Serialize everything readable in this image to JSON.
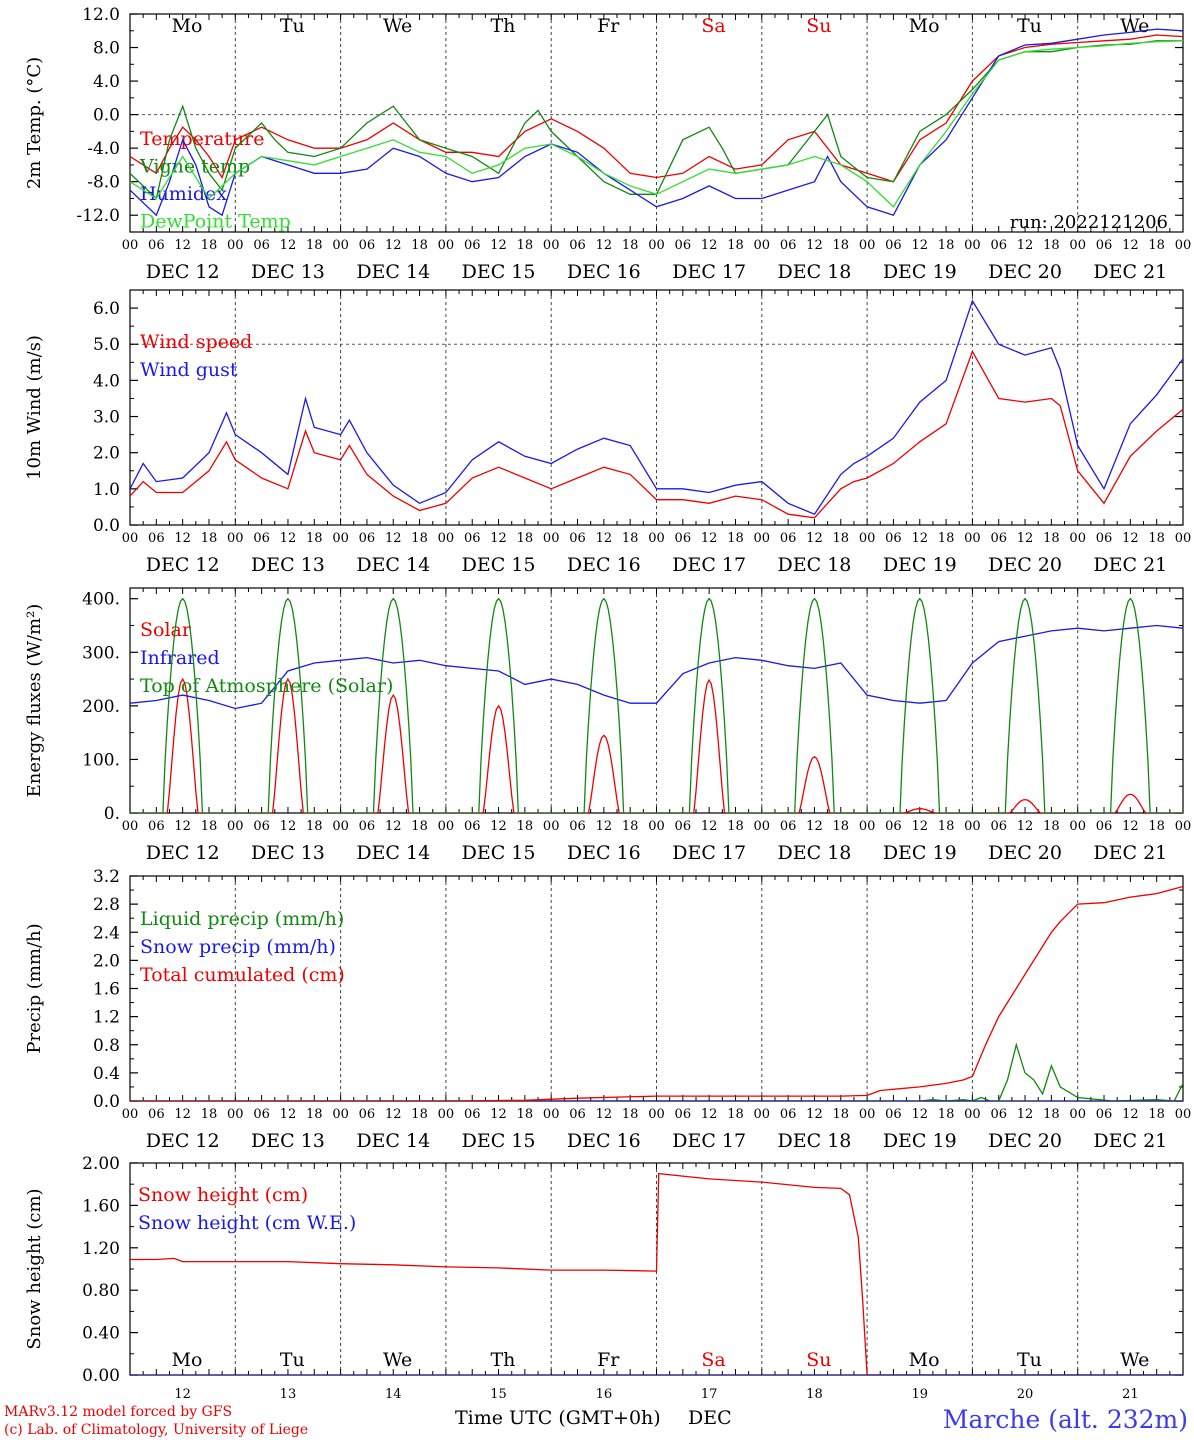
{
  "run_label": "run: 2022121206",
  "footer": {
    "credit_line1": "MARv3.12 model forced by GFS",
    "credit_line2": "(c) Lab. of Climatology, University of Liege",
    "xaxis_title": "Time UTC (GMT+0h)",
    "month": "DEC",
    "station": "Marche (alt. 232m)"
  },
  "days": [
    {
      "dow": "Mo",
      "label": "DEC 12",
      "num": "12",
      "weekend": false
    },
    {
      "dow": "Tu",
      "label": "DEC 13",
      "num": "13",
      "weekend": false
    },
    {
      "dow": "We",
      "label": "DEC 14",
      "num": "14",
      "weekend": false
    },
    {
      "dow": "Th",
      "label": "DEC 15",
      "num": "15",
      "weekend": false
    },
    {
      "dow": "Fr",
      "label": "DEC 16",
      "num": "16",
      "weekend": false
    },
    {
      "dow": "Sa",
      "label": "DEC 17",
      "num": "17",
      "weekend": true
    },
    {
      "dow": "Su",
      "label": "DEC 18",
      "num": "18",
      "weekend": true
    },
    {
      "dow": "Mo",
      "label": "DEC 19",
      "num": "19",
      "weekend": false
    },
    {
      "dow": "Tu",
      "label": "DEC 20",
      "num": "20",
      "weekend": false
    },
    {
      "dow": "We",
      "label": "DEC 21",
      "num": "21",
      "weekend": false
    }
  ],
  "hour_ticks": [
    "00",
    "06",
    "12",
    "18"
  ],
  "colors": {
    "red": "#ee0000",
    "green": "#118811",
    "blue": "#1a1ae6",
    "lightgreen": "#33dd33"
  },
  "chart_data": [
    {
      "id": "temp",
      "type": "line",
      "ylabel": "2m Temp. (°C)",
      "x_unit": "hours since DEC 12 00 UTC",
      "ylim": [
        -14,
        12
      ],
      "yticks": [
        12,
        8,
        4,
        0,
        -4,
        -8,
        -12
      ],
      "ytick_labels": [
        "12.0",
        "8.0",
        "4.0",
        "0.0",
        "-4.0",
        "-8.0",
        "-12.0"
      ],
      "ref_lines": [
        0
      ],
      "show_dow": true,
      "series": [
        {
          "name": "Temperature",
          "color": "red",
          "x": [
            0,
            6,
            9,
            12,
            15,
            18,
            21,
            24,
            30,
            36,
            42,
            48,
            54,
            60,
            66,
            72,
            78,
            84,
            90,
            96,
            102,
            108,
            114,
            120,
            126,
            132,
            138,
            144,
            150,
            156,
            162,
            168,
            174,
            180,
            186,
            192,
            198,
            204,
            210,
            216,
            222,
            228,
            234,
            240
          ],
          "y": [
            -5,
            -7,
            -4,
            -1.5,
            -3,
            -5,
            -7.5,
            -3,
            -1.5,
            -3,
            -4,
            -4,
            -3,
            -1,
            -3,
            -4.5,
            -4.5,
            -5,
            -2,
            -0.5,
            -2,
            -4,
            -7,
            -7.5,
            -7,
            -5,
            -6.5,
            -6,
            -3,
            -2,
            -6,
            -7,
            -8,
            -3,
            -1,
            4,
            7,
            8,
            8.4,
            8.6,
            8.8,
            9,
            9.5,
            9.3
          ]
        },
        {
          "name": "Vigne temp",
          "color": "green",
          "x": [
            0,
            6,
            9,
            12,
            15,
            18,
            21,
            24,
            30,
            33,
            36,
            42,
            48,
            54,
            60,
            63,
            66,
            72,
            78,
            84,
            90,
            93,
            96,
            102,
            108,
            114,
            120,
            126,
            132,
            135,
            138,
            144,
            150,
            156,
            159,
            162,
            168,
            174,
            180,
            186,
            192,
            198,
            204,
            210,
            216,
            222,
            228,
            234,
            240
          ],
          "y": [
            -7,
            -10,
            -3,
            1,
            -4,
            -7,
            -9,
            -4,
            -1,
            -3,
            -4.5,
            -5,
            -4,
            -1,
            1,
            -1,
            -3,
            -4,
            -5,
            -7,
            -1,
            0.5,
            -2,
            -5,
            -8,
            -9.5,
            -9.5,
            -3,
            -1.5,
            -4,
            -7,
            -6.5,
            -6,
            -2,
            0,
            -5,
            -7.5,
            -8,
            -2,
            0,
            3,
            6.5,
            7.5,
            7.5,
            8,
            8.3,
            8.4,
            8.8,
            8.8
          ]
        },
        {
          "name": "Humidex",
          "color": "blue",
          "x": [
            0,
            6,
            9,
            12,
            15,
            18,
            21,
            24,
            30,
            36,
            42,
            48,
            54,
            60,
            66,
            72,
            78,
            84,
            90,
            96,
            102,
            108,
            114,
            120,
            126,
            132,
            138,
            144,
            150,
            156,
            159,
            162,
            168,
            174,
            180,
            186,
            192,
            198,
            204,
            210,
            216,
            222,
            228,
            234,
            240
          ],
          "y": [
            -9,
            -12,
            -8,
            -3,
            -6,
            -11,
            -12,
            -7,
            -5,
            -6,
            -7,
            -7,
            -6.5,
            -4,
            -5,
            -7,
            -8,
            -7.5,
            -5,
            -3.5,
            -4.5,
            -7,
            -9,
            -11,
            -10,
            -8.5,
            -10,
            -10,
            -9,
            -8,
            -5,
            -8,
            -11,
            -12,
            -6,
            -3,
            2,
            7,
            8.3,
            8.5,
            9,
            9.5,
            9.8,
            10.2,
            10
          ]
        },
        {
          "name": "DewPoint Temp",
          "color": "lightgreen",
          "x": [
            0,
            6,
            12,
            18,
            24,
            30,
            36,
            42,
            48,
            54,
            60,
            66,
            72,
            78,
            84,
            90,
            96,
            102,
            108,
            114,
            120,
            126,
            132,
            138,
            144,
            150,
            156,
            162,
            168,
            174,
            180,
            186,
            192,
            198,
            204,
            210,
            216,
            222,
            228,
            234,
            240
          ],
          "y": [
            -8,
            -10,
            -5,
            -10,
            -7,
            -5,
            -5.5,
            -6,
            -5,
            -4,
            -3,
            -4.5,
            -5,
            -7,
            -6,
            -4,
            -3.5,
            -5,
            -7,
            -8.5,
            -9.5,
            -8,
            -6.5,
            -7,
            -6.5,
            -6,
            -5,
            -6,
            -8,
            -11,
            -6,
            -2,
            2.5,
            6.5,
            7.5,
            7.8,
            8,
            8.2,
            8.5,
            8.7,
            8.8
          ]
        }
      ]
    },
    {
      "id": "wind",
      "type": "line",
      "ylabel": "10m Wind (m/s)",
      "x_unit": "hours since DEC 12 00 UTC",
      "ylim": [
        0,
        6.5
      ],
      "yticks": [
        0,
        1,
        2,
        3,
        4,
        5,
        6
      ],
      "ytick_labels": [
        "0.0",
        "1.0",
        "2.0",
        "3.0",
        "4.0",
        "5.0",
        "6.0"
      ],
      "ref_lines": [
        5
      ],
      "show_dow": false,
      "series": [
        {
          "name": "Wind speed",
          "color": "red",
          "x": [
            0,
            3,
            6,
            12,
            18,
            22,
            24,
            30,
            36,
            40,
            42,
            48,
            50,
            54,
            60,
            66,
            72,
            78,
            84,
            90,
            96,
            102,
            108,
            114,
            120,
            126,
            132,
            138,
            144,
            150,
            156,
            162,
            165,
            168,
            174,
            180,
            186,
            192,
            198,
            204,
            210,
            212,
            216,
            222,
            228,
            234,
            240
          ],
          "y": [
            0.8,
            1.2,
            0.9,
            0.9,
            1.5,
            2.3,
            1.8,
            1.3,
            1.0,
            2.6,
            2.0,
            1.8,
            2.2,
            1.4,
            0.8,
            0.4,
            0.6,
            1.3,
            1.6,
            1.3,
            1.0,
            1.3,
            1.6,
            1.4,
            0.7,
            0.7,
            0.6,
            0.8,
            0.7,
            0.3,
            0.2,
            1.0,
            1.2,
            1.3,
            1.7,
            2.3,
            2.8,
            4.8,
            3.5,
            3.4,
            3.5,
            3.3,
            1.5,
            0.6,
            1.9,
            2.6,
            3.2
          ]
        },
        {
          "name": "Wind gust",
          "color": "blue",
          "x": [
            0,
            3,
            6,
            12,
            18,
            22,
            24,
            30,
            36,
            40,
            42,
            48,
            50,
            54,
            60,
            66,
            72,
            78,
            84,
            90,
            96,
            102,
            108,
            114,
            120,
            126,
            132,
            138,
            144,
            150,
            156,
            162,
            165,
            168,
            174,
            180,
            186,
            192,
            198,
            204,
            210,
            212,
            216,
            222,
            228,
            234,
            240
          ],
          "y": [
            1.0,
            1.7,
            1.2,
            1.3,
            2.0,
            3.1,
            2.5,
            2.0,
            1.4,
            3.5,
            2.7,
            2.5,
            2.9,
            2.0,
            1.1,
            0.6,
            0.9,
            1.8,
            2.3,
            1.9,
            1.7,
            2.1,
            2.4,
            2.2,
            1.0,
            1.0,
            0.9,
            1.1,
            1.2,
            0.6,
            0.3,
            1.4,
            1.7,
            1.9,
            2.4,
            3.4,
            4.0,
            6.2,
            5.0,
            4.7,
            4.9,
            4.3,
            2.2,
            1.0,
            2.8,
            3.6,
            4.6
          ]
        }
      ]
    },
    {
      "id": "energy",
      "type": "line",
      "ylabel": "Energy fluxes (W/m²)",
      "x_unit": "hours since DEC 12 00 UTC",
      "ylim": [
        0,
        420
      ],
      "yticks": [
        0,
        100,
        200,
        300,
        400
      ],
      "ytick_labels": [
        "0.",
        "100.",
        "200.",
        "300.",
        "400."
      ],
      "ref_lines": [],
      "show_dow": false,
      "toa_peak": 400,
      "solar_peaks": [
        250,
        250,
        220,
        200,
        145,
        248,
        105,
        8,
        25,
        35
      ],
      "series": [
        {
          "name": "Solar",
          "color": "red"
        },
        {
          "name": "Infrared",
          "color": "blue",
          "x": [
            0,
            6,
            12,
            18,
            24,
            30,
            36,
            42,
            48,
            54,
            60,
            66,
            72,
            78,
            84,
            90,
            96,
            102,
            108,
            114,
            120,
            126,
            132,
            138,
            144,
            150,
            156,
            162,
            168,
            174,
            180,
            186,
            192,
            198,
            204,
            210,
            216,
            222,
            228,
            234,
            240
          ],
          "y": [
            205,
            210,
            220,
            210,
            195,
            205,
            265,
            280,
            285,
            290,
            280,
            285,
            275,
            270,
            265,
            240,
            250,
            240,
            220,
            205,
            205,
            260,
            280,
            290,
            285,
            275,
            270,
            280,
            220,
            210,
            205,
            210,
            280,
            320,
            330,
            340,
            345,
            340,
            345,
            350,
            345
          ]
        },
        {
          "name": "Top of Atmosphere (Solar)",
          "color": "green"
        }
      ]
    },
    {
      "id": "precip",
      "type": "line",
      "ylabel": "Precip (mm/h)",
      "x_unit": "hours since DEC 12 00 UTC",
      "ylim": [
        0,
        3.2
      ],
      "yticks": [
        0,
        0.4,
        0.8,
        1.2,
        1.6,
        2.0,
        2.4,
        2.8,
        3.2
      ],
      "ytick_labels": [
        "0.0",
        "0.4",
        "0.8",
        "1.2",
        "1.6",
        "2.0",
        "2.4",
        "2.8",
        "3.2"
      ],
      "ref_lines": [],
      "show_dow": false,
      "series": [
        {
          "name": "Liquid precip (mm/h)",
          "color": "green",
          "x": [
            0,
            180,
            183,
            186,
            190,
            192,
            194,
            196,
            198,
            200,
            202,
            204,
            206,
            208,
            210,
            212,
            216,
            224,
            234,
            238,
            240
          ],
          "y": [
            0,
            0,
            0.02,
            0,
            0.02,
            0,
            0.05,
            0,
            0,
            0.3,
            0.8,
            0.4,
            0.3,
            0.1,
            0.5,
            0.2,
            0.05,
            0,
            0.02,
            0,
            0.25
          ]
        },
        {
          "name": "Snow precip (mm/h)",
          "color": "blue",
          "x": [
            0,
            240
          ],
          "y": [
            0,
            0
          ]
        },
        {
          "name": "Total cumulated (cm)",
          "color": "red",
          "x": [
            0,
            72,
            90,
            102,
            120,
            138,
            150,
            162,
            168,
            171,
            180,
            186,
            190,
            192,
            195,
            198,
            204,
            210,
            212,
            216,
            222,
            228,
            234,
            240
          ],
          "y": [
            0,
            0,
            0.01,
            0.04,
            0.07,
            0.07,
            0.07,
            0.07,
            0.08,
            0.15,
            0.2,
            0.25,
            0.3,
            0.35,
            0.8,
            1.2,
            1.8,
            2.4,
            2.55,
            2.8,
            2.82,
            2.9,
            2.95,
            3.05
          ]
        }
      ]
    },
    {
      "id": "snow",
      "type": "line",
      "ylabel": "Snow height (cm)",
      "x_unit": "hours since DEC 12 00 UTC",
      "ylim": [
        0,
        2.0
      ],
      "yticks": [
        0,
        0.4,
        0.8,
        1.2,
        1.6,
        2.0
      ],
      "ytick_labels": [
        "0.00",
        "0.40",
        "0.80",
        "1.20",
        "1.60",
        "2.00"
      ],
      "ref_lines": [],
      "show_dow": true,
      "series": [
        {
          "name": "Snow height (cm)",
          "color": "red",
          "x": [
            0,
            6,
            10,
            12,
            24,
            36,
            48,
            60,
            72,
            84,
            96,
            108,
            120,
            120.5,
            132,
            144,
            156,
            162,
            164,
            166,
            167,
            168,
            168.2,
            240
          ],
          "y": [
            1.09,
            1.09,
            1.1,
            1.07,
            1.07,
            1.07,
            1.05,
            1.04,
            1.02,
            1.01,
            0.99,
            0.99,
            0.98,
            1.9,
            1.85,
            1.82,
            1.77,
            1.76,
            1.7,
            1.3,
            0.7,
            0,
            0,
            0
          ]
        },
        {
          "name": "Snow height (cm W.E.)",
          "color": "blue",
          "x": [
            0,
            240
          ],
          "y": [
            0,
            0
          ]
        }
      ]
    }
  ]
}
